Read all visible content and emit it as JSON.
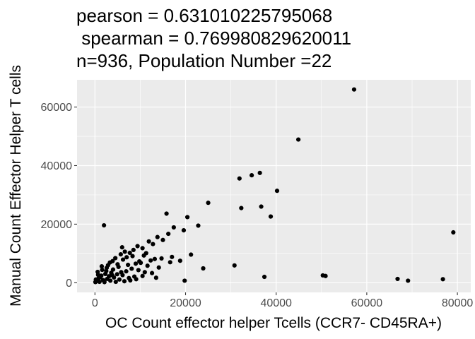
{
  "chart_data": {
    "type": "scatter",
    "title_lines": [
      "pearson = 0.631010225795068",
      " spearman = 0.769980829620011",
      "n=936, Population Number =22"
    ],
    "xlabel": "OC Count effector helper Tcells (CCR7- CD45RA+)",
    "ylabel": "Manual Count Effector Helper T cells",
    "xlim": [
      -3950,
      82950
    ],
    "ylim": [
      -3300,
      69300
    ],
    "x_ticks": [
      0,
      20000,
      40000,
      60000,
      80000
    ],
    "x_tick_labels": [
      "0",
      "20000",
      "40000",
      "60000",
      "80000"
    ],
    "y_ticks": [
      0,
      20000,
      40000,
      60000
    ],
    "y_tick_labels": [
      "0",
      "20000",
      "40000",
      "60000"
    ],
    "grid": true,
    "legend": "none",
    "colors": {
      "panel": "#ebebeb",
      "grid": "#ffffff",
      "point": "#000000"
    },
    "points": [
      {
        "x": 57200,
        "y": 66000
      },
      {
        "x": 44900,
        "y": 48900
      },
      {
        "x": 36400,
        "y": 37500
      },
      {
        "x": 34600,
        "y": 36700
      },
      {
        "x": 31900,
        "y": 35600
      },
      {
        "x": 40200,
        "y": 31400
      },
      {
        "x": 25000,
        "y": 27300
      },
      {
        "x": 36700,
        "y": 26000
      },
      {
        "x": 32300,
        "y": 25500
      },
      {
        "x": 15800,
        "y": 23600
      },
      {
        "x": 38800,
        "y": 22600
      },
      {
        "x": 20400,
        "y": 22400
      },
      {
        "x": 2000,
        "y": 19600
      },
      {
        "x": 22800,
        "y": 19500
      },
      {
        "x": 17400,
        "y": 18900
      },
      {
        "x": 79100,
        "y": 17200
      },
      {
        "x": 19600,
        "y": 17900
      },
      {
        "x": 16200,
        "y": 16700
      },
      {
        "x": 13800,
        "y": 15600
      },
      {
        "x": 15000,
        "y": 14600
      },
      {
        "x": 12800,
        "y": 13200
      },
      {
        "x": 11900,
        "y": 14100
      },
      {
        "x": 9400,
        "y": 12500
      },
      {
        "x": 10500,
        "y": 11800
      },
      {
        "x": 8500,
        "y": 11200
      },
      {
        "x": 6600,
        "y": 10600
      },
      {
        "x": 7700,
        "y": 10200
      },
      {
        "x": 11300,
        "y": 10100
      },
      {
        "x": 5700,
        "y": 9700
      },
      {
        "x": 21200,
        "y": 9600
      },
      {
        "x": 17000,
        "y": 8800
      },
      {
        "x": 14700,
        "y": 8300
      },
      {
        "x": 13200,
        "y": 8100
      },
      {
        "x": 12300,
        "y": 7600
      },
      {
        "x": 18800,
        "y": 7500
      },
      {
        "x": 16600,
        "y": 7000
      },
      {
        "x": 10100,
        "y": 6800
      },
      {
        "x": 9000,
        "y": 6500
      },
      {
        "x": 4500,
        "y": 8400
      },
      {
        "x": 6200,
        "y": 7900
      },
      {
        "x": 3300,
        "y": 6900
      },
      {
        "x": 7300,
        "y": 6100
      },
      {
        "x": 30800,
        "y": 5900
      },
      {
        "x": 11600,
        "y": 5800
      },
      {
        "x": 14100,
        "y": 5200
      },
      {
        "x": 23900,
        "y": 4900
      },
      {
        "x": 5200,
        "y": 5400
      },
      {
        "x": 8100,
        "y": 4800
      },
      {
        "x": 9600,
        "y": 4300
      },
      {
        "x": 2600,
        "y": 5100
      },
      {
        "x": 4000,
        "y": 4500
      },
      {
        "x": 6900,
        "y": 3900
      },
      {
        "x": 11000,
        "y": 3600
      },
      {
        "x": 12600,
        "y": 3300
      },
      {
        "x": 50300,
        "y": 2500
      },
      {
        "x": 50900,
        "y": 2300
      },
      {
        "x": 37400,
        "y": 2000
      },
      {
        "x": 66800,
        "y": 1300
      },
      {
        "x": 76800,
        "y": 1200
      },
      {
        "x": 69100,
        "y": 700
      },
      {
        "x": 19800,
        "y": 700
      },
      {
        "x": 13500,
        "y": 1700
      },
      {
        "x": 10500,
        "y": 2300
      },
      {
        "x": 8700,
        "y": 2100
      },
      {
        "x": 7500,
        "y": 1600
      },
      {
        "x": 6100,
        "y": 2600
      },
      {
        "x": 4900,
        "y": 2900
      },
      {
        "x": 3600,
        "y": 3400
      },
      {
        "x": 2300,
        "y": 3000
      },
      {
        "x": 1400,
        "y": 2400
      },
      {
        "x": 800,
        "y": 1500
      },
      {
        "x": 400,
        "y": 600
      },
      {
        "x": 100,
        "y": 200
      },
      {
        "x": 1000,
        "y": 300
      },
      {
        "x": 1800,
        "y": 900
      },
      {
        "x": 2700,
        "y": 1300
      },
      {
        "x": 3400,
        "y": 700
      },
      {
        "x": 4200,
        "y": 1800
      },
      {
        "x": 5400,
        "y": 1100
      },
      {
        "x": 6500,
        "y": 500
      },
      {
        "x": 7800,
        "y": 800
      },
      {
        "x": 9100,
        "y": 1200
      },
      {
        "x": 600,
        "y": 3700
      },
      {
        "x": 1600,
        "y": 4400
      },
      {
        "x": 2900,
        "y": 6000
      },
      {
        "x": 3900,
        "y": 7400
      },
      {
        "x": 5000,
        "y": 6300
      },
      {
        "x": 200,
        "y": 1100
      },
      {
        "x": 1200,
        "y": 1900
      },
      {
        "x": 2100,
        "y": 200
      },
      {
        "x": 3100,
        "y": 2200
      },
      {
        "x": 4600,
        "y": 300
      },
      {
        "x": 5800,
        "y": 3600
      },
      {
        "x": 700,
        "y": 2700
      },
      {
        "x": 1500,
        "y": 5600
      },
      {
        "x": 2500,
        "y": 4000
      },
      {
        "x": 3800,
        "y": 2600
      },
      {
        "x": 8300,
        "y": 9100
      },
      {
        "x": 7000,
        "y": 8700
      },
      {
        "x": 9800,
        "y": 7300
      },
      {
        "x": 10800,
        "y": 9300
      },
      {
        "x": 6000,
        "y": 12100
      }
    ]
  }
}
